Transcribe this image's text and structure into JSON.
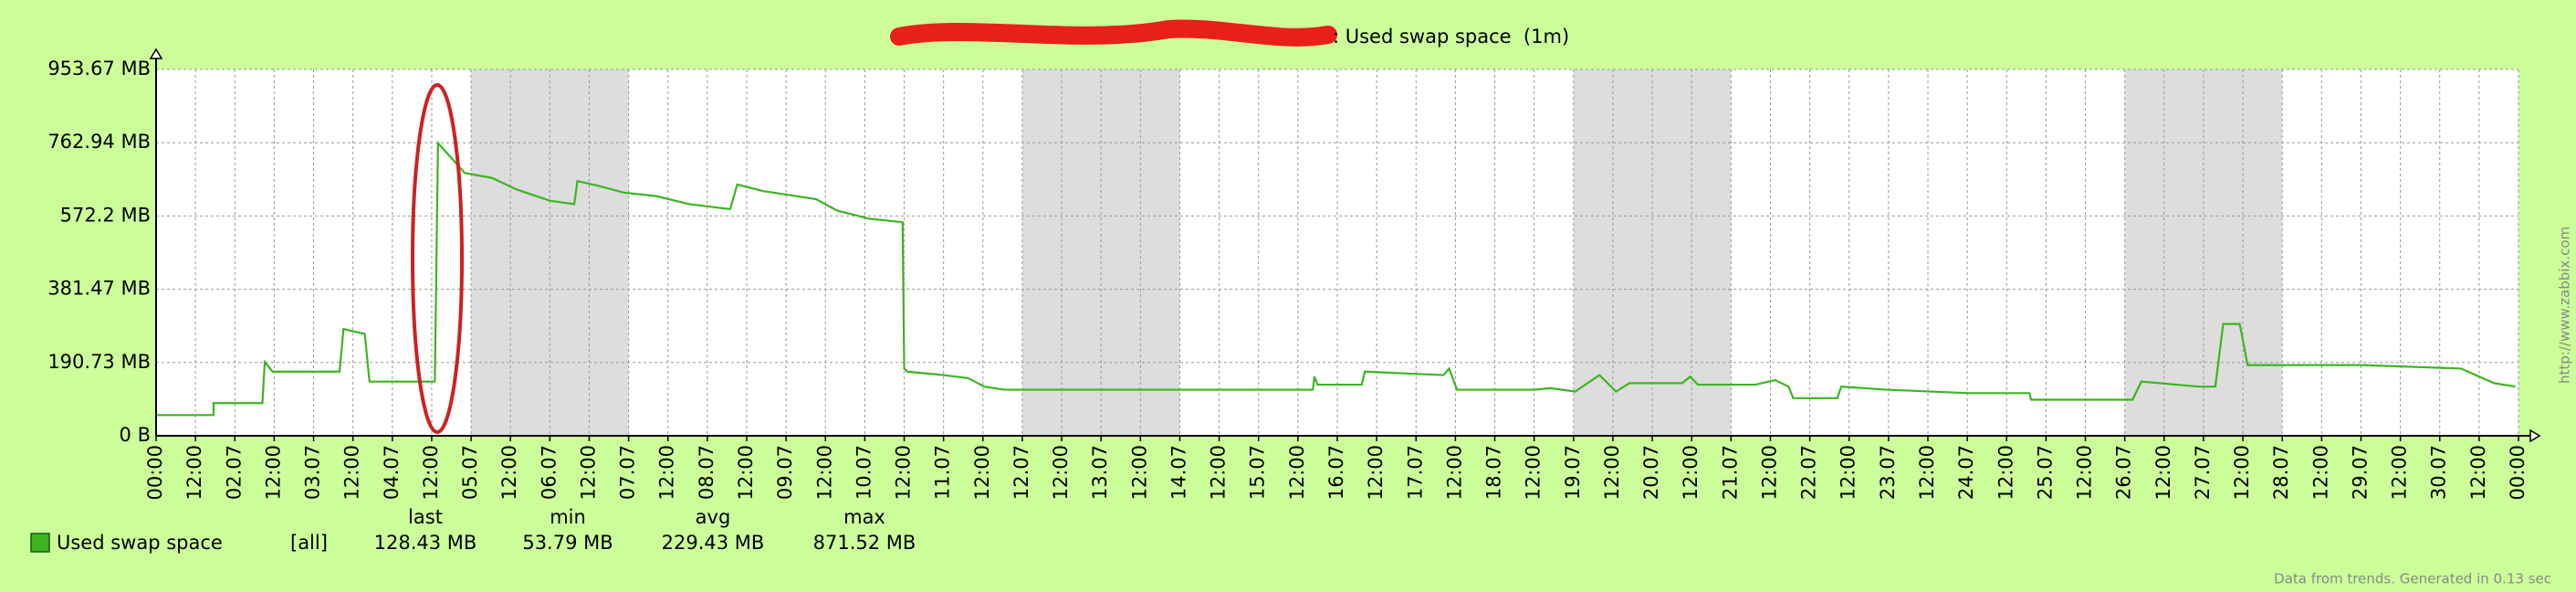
{
  "chart_data": {
    "type": "line",
    "title": ": Used swap space  (1m)",
    "x": [
      1.0,
      1.73,
      1.73,
      2.35,
      2.38,
      2.48,
      3.33,
      3.38,
      3.65,
      3.71,
      4.54,
      4.58,
      4.92,
      5.27,
      5.58,
      6.0,
      6.31,
      6.35,
      6.63,
      6.94,
      7.35,
      7.77,
      8.29,
      8.38,
      8.71,
      9.38,
      9.65,
      10.06,
      10.48,
      10.5,
      10.54,
      11.0,
      11.31,
      11.52,
      11.77,
      15.69,
      15.71,
      15.75,
      16.31,
      16.35,
      17.35,
      17.42,
      17.52,
      18.5,
      18.71,
      19.02,
      19.33,
      19.54,
      19.71,
      20.38,
      20.48,
      20.58,
      21.31,
      21.56,
      21.73,
      21.79,
      22.35,
      22.4,
      22.98,
      24.02,
      24.79,
      24.81,
      26.1,
      26.21,
      26.94,
      27.15,
      27.25,
      27.46,
      27.56,
      29.02,
      30.27,
      30.69,
      30.96
    ],
    "series": [
      {
        "name": "Used swap space",
        "color": "#3cb521",
        "values": [
          54,
          54,
          85,
          85,
          192,
          167,
          167,
          278,
          265,
          141,
          141,
          762,
          684,
          671,
          641,
          612,
          603,
          663,
          650,
          633,
          624,
          603,
          590,
          654,
          637,
          616,
          586,
          565,
          556,
          175,
          167,
          158,
          150,
          128,
          120,
          120,
          154,
          133,
          133,
          167,
          158,
          175,
          120,
          120,
          124,
          115,
          158,
          115,
          137,
          137,
          154,
          133,
          133,
          145,
          128,
          98,
          98,
          128,
          120,
          111,
          111,
          94,
          94,
          141,
          128,
          128,
          291,
          291,
          184,
          184,
          175,
          137,
          128
        ],
        "function": "[all]",
        "stats": [
          "128.43 MB",
          "53.79 MB",
          "229.43 MB",
          "871.52 MB"
        ]
      }
    ],
    "stat_headers": [
      "last",
      "min",
      "avg",
      "max"
    ],
    "xlim": [
      1,
      31
    ],
    "xticks": [
      {
        "value": 1,
        "label": "00:00"
      },
      {
        "value": 1.5,
        "label": "12:00"
      },
      {
        "value": 2,
        "label": "02.07"
      },
      {
        "value": 2.5,
        "label": "12:00"
      },
      {
        "value": 3,
        "label": "03.07"
      },
      {
        "value": 3.5,
        "label": "12:00"
      },
      {
        "value": 4,
        "label": "04.07"
      },
      {
        "value": 4.5,
        "label": "12:00"
      },
      {
        "value": 5,
        "label": "05.07"
      },
      {
        "value": 5.5,
        "label": "12:00"
      },
      {
        "value": 6,
        "label": "06.07"
      },
      {
        "value": 6.5,
        "label": "12:00"
      },
      {
        "value": 7,
        "label": "07.07"
      },
      {
        "value": 7.5,
        "label": "12:00"
      },
      {
        "value": 8,
        "label": "08.07"
      },
      {
        "value": 8.5,
        "label": "12:00"
      },
      {
        "value": 9,
        "label": "09.07"
      },
      {
        "value": 9.5,
        "label": "12:00"
      },
      {
        "value": 10,
        "label": "10.07"
      },
      {
        "value": 10.5,
        "label": "12:00"
      },
      {
        "value": 11,
        "label": "11.07"
      },
      {
        "value": 11.5,
        "label": "12:00"
      },
      {
        "value": 12,
        "label": "12.07"
      },
      {
        "value": 12.5,
        "label": "12:00"
      },
      {
        "value": 13,
        "label": "13.07"
      },
      {
        "value": 13.5,
        "label": "12:00"
      },
      {
        "value": 14,
        "label": "14.07"
      },
      {
        "value": 14.5,
        "label": "12:00"
      },
      {
        "value": 15,
        "label": "15.07"
      },
      {
        "value": 15.5,
        "label": "12:00"
      },
      {
        "value": 16,
        "label": "16.07"
      },
      {
        "value": 16.5,
        "label": "12:00"
      },
      {
        "value": 17,
        "label": "17.07"
      },
      {
        "value": 17.5,
        "label": "12:00"
      },
      {
        "value": 18,
        "label": "18.07"
      },
      {
        "value": 18.5,
        "label": "12:00"
      },
      {
        "value": 19,
        "label": "19.07"
      },
      {
        "value": 19.5,
        "label": "12:00"
      },
      {
        "value": 20,
        "label": "20.07"
      },
      {
        "value": 20.5,
        "label": "12:00"
      },
      {
        "value": 21,
        "label": "21.07"
      },
      {
        "value": 21.5,
        "label": "12:00"
      },
      {
        "value": 22,
        "label": "22.07"
      },
      {
        "value": 22.5,
        "label": "12:00"
      },
      {
        "value": 23,
        "label": "23.07"
      },
      {
        "value": 23.5,
        "label": "12:00"
      },
      {
        "value": 24,
        "label": "24.07"
      },
      {
        "value": 24.5,
        "label": "12:00"
      },
      {
        "value": 25,
        "label": "25.07"
      },
      {
        "value": 25.5,
        "label": "12:00"
      },
      {
        "value": 26,
        "label": "26.07"
      },
      {
        "value": 26.5,
        "label": "12:00"
      },
      {
        "value": 27,
        "label": "27.07"
      },
      {
        "value": 27.5,
        "label": "12:00"
      },
      {
        "value": 28,
        "label": "28.07"
      },
      {
        "value": 28.5,
        "label": "12:00"
      },
      {
        "value": 29,
        "label": "29.07"
      },
      {
        "value": 29.5,
        "label": "12:00"
      },
      {
        "value": 30,
        "label": "30.07"
      },
      {
        "value": 30.5,
        "label": "12:00"
      },
      {
        "value": 31,
        "label": "00:00"
      }
    ],
    "xtick_color": "#000000",
    "xtick_day_color": "#b00000",
    "shaded_ranges": [
      [
        5,
        7
      ],
      [
        12,
        14
      ],
      [
        19,
        21
      ],
      [
        26,
        28
      ]
    ],
    "shade_color": "#dddddd",
    "ylim": [
      0,
      953.67
    ],
    "yticks": [
      {
        "value": 0,
        "label": "0 B"
      },
      {
        "value": 190.73,
        "label": "190.73 MB"
      },
      {
        "value": 381.47,
        "label": "381.47 MB"
      },
      {
        "value": 572.2,
        "label": "572.2 MB"
      },
      {
        "value": 762.94,
        "label": "762.94 MB"
      },
      {
        "value": 953.67,
        "label": "953.67 MB"
      }
    ],
    "grid": true,
    "footer": "Data from trends. Generated in 0.13 sec",
    "watermark": "http://www.zabbix.com"
  }
}
